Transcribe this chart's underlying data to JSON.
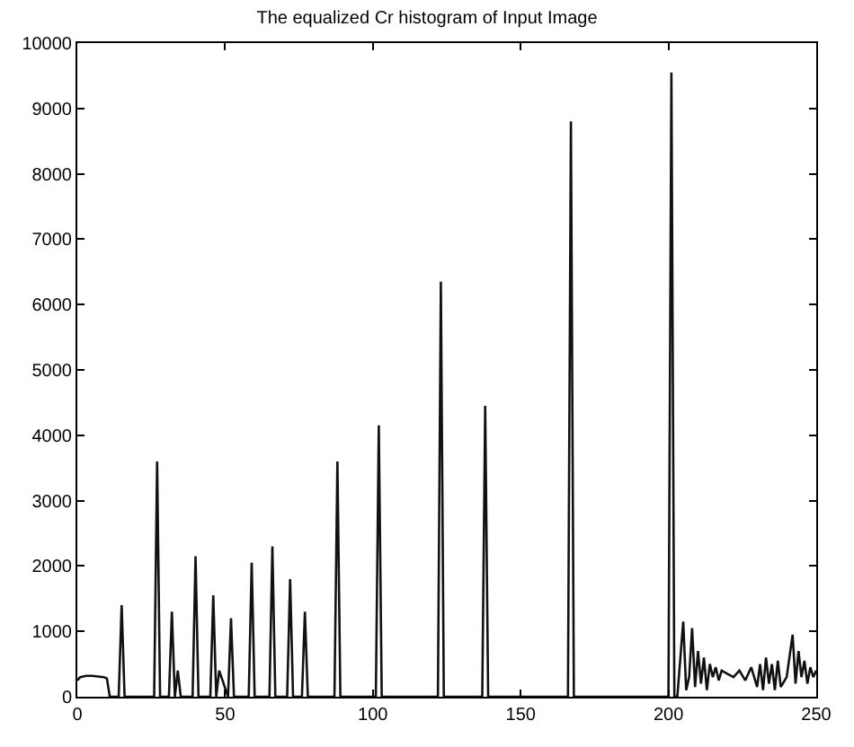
{
  "chart_data": {
    "type": "line",
    "title": "The equalized Cr histogram of Input Image",
    "x": [
      0,
      1,
      3,
      5,
      7,
      9,
      10,
      11,
      14,
      15,
      16,
      26,
      27,
      28,
      31,
      32,
      33,
      34,
      35,
      36,
      39,
      40,
      41,
      45,
      46,
      47,
      48,
      51,
      52,
      53,
      58,
      59,
      60,
      65,
      66,
      67,
      71,
      72,
      73,
      76,
      77,
      78,
      87,
      88,
      89,
      101,
      102,
      103,
      122,
      123,
      124,
      137,
      138,
      139,
      166,
      167,
      168,
      200,
      201,
      202,
      203,
      205,
      206,
      207,
      208,
      209,
      210,
      211,
      212,
      213,
      214,
      215,
      216,
      217,
      218,
      220,
      222,
      224,
      226,
      228,
      230,
      231,
      232,
      233,
      234,
      235,
      236,
      237,
      238,
      240,
      242,
      243,
      244,
      245,
      246,
      247,
      248,
      249,
      250
    ],
    "series": [
      {
        "color": "#111111",
        "values": [
          250,
          300,
          320,
          320,
          310,
          300,
          280,
          0,
          0,
          1400,
          0,
          0,
          3600,
          0,
          0,
          1300,
          0,
          400,
          0,
          0,
          0,
          2150,
          0,
          0,
          1550,
          0,
          400,
          0,
          1200,
          0,
          0,
          2050,
          0,
          0,
          2300,
          0,
          0,
          1800,
          0,
          0,
          1300,
          0,
          0,
          3600,
          0,
          0,
          4150,
          0,
          0,
          6350,
          0,
          0,
          4450,
          0,
          0,
          8800,
          0,
          0,
          9550,
          0,
          0,
          1150,
          100,
          300,
          1050,
          150,
          700,
          200,
          600,
          100,
          500,
          300,
          450,
          250,
          400,
          350,
          300,
          400,
          250,
          450,
          150,
          500,
          100,
          600,
          200,
          500,
          100,
          550,
          150,
          300,
          950,
          200,
          700,
          300,
          550,
          200,
          450,
          300,
          400
        ]
      }
    ],
    "xlim": [
      0,
      250
    ],
    "ylim": [
      0,
      10000
    ],
    "xticks": [
      0,
      50,
      100,
      150,
      200,
      250
    ],
    "yticks": [
      0,
      1000,
      2000,
      3000,
      4000,
      5000,
      6000,
      7000,
      8000,
      9000,
      10000
    ],
    "legend": false
  }
}
